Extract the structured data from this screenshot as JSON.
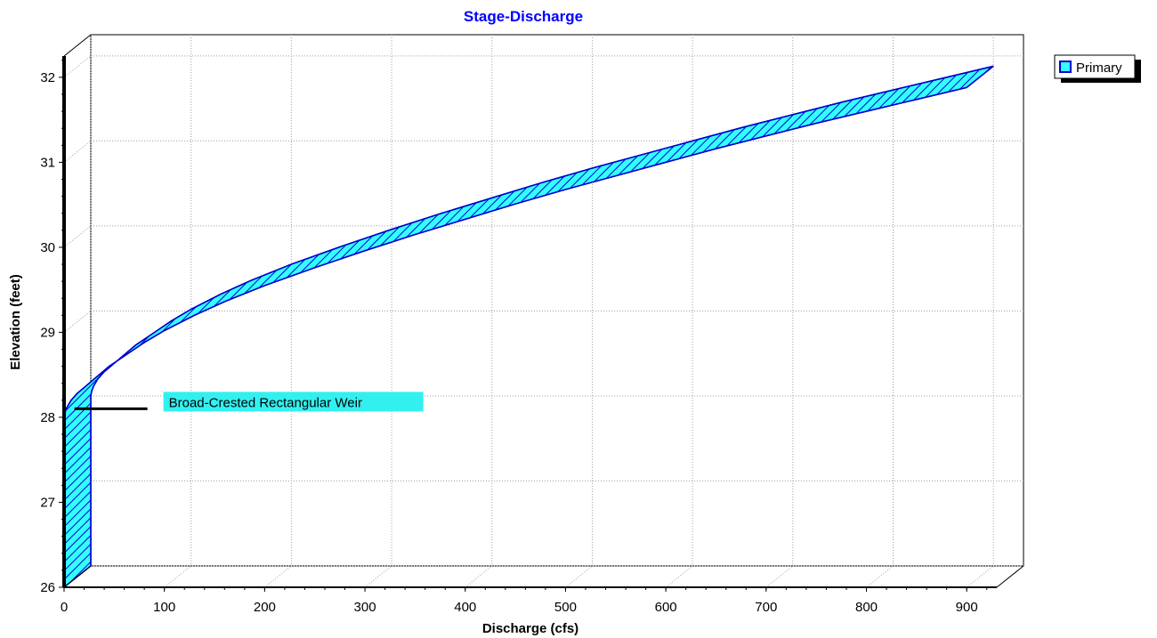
{
  "colors": {
    "title": "#0000ff",
    "series_fill": "#33ffff",
    "series_edge": "#0000cc",
    "grid": "#a0a0a0",
    "annotation_bg": "#33f0f0"
  },
  "chart_data": {
    "type": "area",
    "title": "Stage-Discharge",
    "xlabel": "Discharge (cfs)",
    "ylabel": "Elevation (feet)",
    "xlim": [
      0,
      930
    ],
    "ylim": [
      26,
      32.25
    ],
    "x_ticks": [
      0,
      100,
      200,
      300,
      400,
      500,
      600,
      700,
      800,
      900
    ],
    "y_ticks": [
      26,
      27,
      28,
      29,
      30,
      31,
      32
    ],
    "grid": true,
    "three_d": true,
    "legend": {
      "placement": "top-right",
      "entries": [
        "Primary"
      ]
    },
    "series": [
      {
        "name": "Primary",
        "x": [
          0,
          0,
          1,
          3,
          7,
          13,
          20,
          30,
          45,
          60,
          80,
          100,
          130,
          160,
          200,
          250,
          300,
          350,
          400,
          450,
          500,
          550,
          600,
          650,
          700,
          750,
          800,
          850,
          900
        ],
        "y": [
          26.0,
          28.0,
          28.06,
          28.12,
          28.2,
          28.28,
          28.35,
          28.45,
          28.6,
          28.72,
          28.88,
          29.02,
          29.2,
          29.36,
          29.55,
          29.76,
          29.96,
          30.15,
          30.33,
          30.51,
          30.68,
          30.84,
          31.0,
          31.16,
          31.31,
          31.46,
          31.6,
          31.74,
          31.88
        ]
      }
    ],
    "annotations": [
      {
        "text": "Broad-Crested Rectangular Weir",
        "x": 5,
        "y": 28.1
      }
    ]
  }
}
